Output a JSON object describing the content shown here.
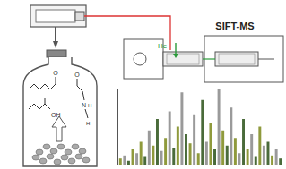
{
  "diagram": {
    "instrument_label": "SIFT-MS",
    "carrier_gas_label": "He",
    "molecules": [
      {
        "atoms": [
          "O"
        ]
      },
      {
        "atoms": [
          "OH"
        ]
      },
      {
        "atoms": [
          "O",
          "N",
          "H",
          "H"
        ]
      }
    ]
  },
  "chart_data": {
    "type": "bar",
    "categories": [
      null,
      null,
      null,
      null,
      null,
      null,
      null,
      null,
      null,
      null,
      null,
      null,
      null,
      null,
      null,
      null,
      null,
      null,
      null,
      null,
      null,
      null,
      null,
      null,
      null,
      null,
      null,
      null,
      null,
      null,
      null,
      null,
      null,
      null,
      null,
      null,
      null,
      null,
      null,
      null
    ],
    "values": [
      8,
      12,
      5,
      20,
      15,
      30,
      10,
      45,
      25,
      60,
      18,
      35,
      70,
      22,
      50,
      95,
      40,
      28,
      65,
      15,
      85,
      30,
      55,
      20,
      100,
      45,
      25,
      75,
      35,
      15,
      60,
      20,
      40,
      10,
      50,
      25,
      30,
      12,
      20,
      8
    ],
    "colors": [
      "#8f9a3c",
      "#9a9a9a",
      "#4a6b3a",
      "#8f9a3c",
      "#9a9a9a",
      "#8f9a3c",
      "#4a6b3a",
      "#9a9a9a",
      "#8f9a3c",
      "#4a6b3a",
      "#9a9a9a",
      "#8f9a3c",
      "#9a9a9a",
      "#4a6b3a",
      "#8f9a3c",
      "#9a9a9a",
      "#4a6b3a",
      "#8f9a3c",
      "#9a9a9a",
      "#8f9a3c",
      "#4a6b3a",
      "#9a9a9a",
      "#8f9a3c",
      "#4a6b3a",
      "#9a9a9a",
      "#8f9a3c",
      "#4a6b3a",
      "#9a9a9a",
      "#8f9a3c",
      "#9a9a9a",
      "#4a6b3a",
      "#8f9a3c",
      "#9a9a9a",
      "#4a6b3a",
      "#8f9a3c",
      "#9a9a9a",
      "#4a6b3a",
      "#8f9a3c",
      "#9a9a9a",
      "#4a6b3a"
    ],
    "ylim": [
      0,
      100
    ],
    "grid": false,
    "tick_labels": false
  }
}
